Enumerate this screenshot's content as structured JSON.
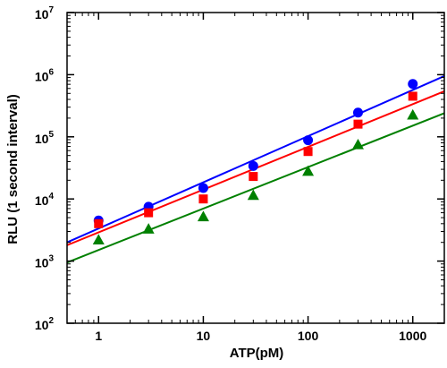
{
  "chart_data": {
    "type": "scatter",
    "title": "",
    "xlabel": "ATP(pM)",
    "ylabel": "RLU (1 second interval)",
    "x_scale": "log",
    "y_scale": "log",
    "xlim": [
      0.5,
      2000
    ],
    "ylim": [
      100,
      10000000
    ],
    "x_ticks": [
      {
        "value": 1,
        "label": "1"
      },
      {
        "value": 10,
        "label": "10"
      },
      {
        "value": 100,
        "label": "100"
      },
      {
        "value": 1000,
        "label": "1000"
      }
    ],
    "y_ticks": [
      {
        "value": 100,
        "base": "10",
        "exp": "2"
      },
      {
        "value": 1000,
        "base": "10",
        "exp": "3"
      },
      {
        "value": 10000,
        "base": "10",
        "exp": "4"
      },
      {
        "value": 100000,
        "base": "10",
        "exp": "5"
      },
      {
        "value": 1000000,
        "base": "10",
        "exp": "6"
      },
      {
        "value": 10000000,
        "base": "10",
        "exp": "7"
      }
    ],
    "grid": false,
    "legend": "none",
    "series": [
      {
        "marker": "circle",
        "color": "#0000ff",
        "x": [
          1,
          3,
          10,
          30,
          100,
          300,
          1000
        ],
        "y": [
          4500,
          7500,
          15000,
          34000,
          88000,
          245000,
          710000
        ],
        "fit": {
          "x": [
            0.5,
            2000
          ],
          "y": [
            2000,
            950000
          ]
        }
      },
      {
        "marker": "square",
        "color": "#ff0000",
        "x": [
          1,
          3,
          10,
          30,
          100,
          300,
          1000
        ],
        "y": [
          4000,
          6000,
          10000,
          23000,
          58000,
          160000,
          450000
        ],
        "fit": {
          "x": [
            0.5,
            2000
          ],
          "y": [
            1800,
            540000
          ]
        }
      },
      {
        "marker": "triangle",
        "color": "#008000",
        "x": [
          1,
          3,
          10,
          30,
          100,
          300,
          1000
        ],
        "y": [
          2200,
          3300,
          5200,
          11500,
          28000,
          75000,
          225000
        ],
        "fit": {
          "x": [
            0.5,
            2000
          ],
          "y": [
            950,
            240000
          ]
        }
      }
    ]
  }
}
